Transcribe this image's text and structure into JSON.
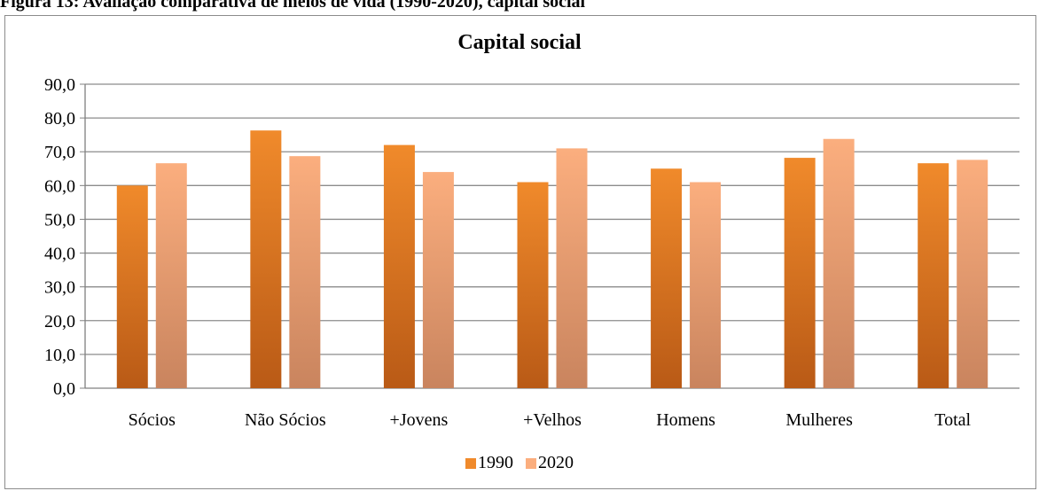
{
  "caption": "Figura 13: Avaliação comparativa de meios de vida (1990-2020), capital social",
  "chart_data": {
    "type": "bar",
    "title": "Capital social",
    "xlabel": "",
    "ylabel": "",
    "categories": [
      "Sócios",
      "Não Sócios",
      "+Jovens",
      "+Velhos",
      "Homens",
      "Mulheres",
      "Total"
    ],
    "series": [
      {
        "name": "1990",
        "values": [
          60.0,
          76.3,
          72.0,
          61.0,
          65.0,
          68.2,
          66.6
        ],
        "color_top": "#f08a2b",
        "color_bottom": "#b95a16"
      },
      {
        "name": "2020",
        "values": [
          66.6,
          68.7,
          64.0,
          71.0,
          61.0,
          73.8,
          67.6
        ],
        "color_top": "#fbae7e",
        "color_bottom": "#c9845e"
      }
    ],
    "yticks": [
      "0,0",
      "10,0",
      "20,0",
      "30,0",
      "40,0",
      "50,0",
      "60,0",
      "70,0",
      "80,0",
      "90,0"
    ],
    "ylim": [
      0,
      90
    ],
    "grid": true,
    "legend_position": "bottom"
  }
}
